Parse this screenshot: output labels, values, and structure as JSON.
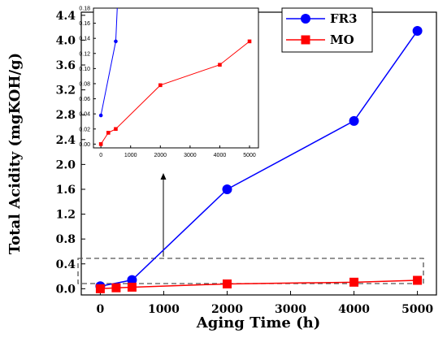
{
  "chart_data": [
    {
      "type": "line",
      "xlabel": "Aging Time (h)",
      "ylabel": "Total Acidity (mgKOH/g)",
      "xlim": [
        -300,
        5300
      ],
      "ylim": [
        -0.1,
        4.45
      ],
      "x_ticks": [
        0,
        1000,
        2000,
        3000,
        4000,
        5000
      ],
      "y_ticks": [
        0.0,
        0.4,
        0.8,
        1.2,
        1.6,
        2.0,
        2.4,
        2.8,
        3.2,
        3.6,
        4.0,
        4.4
      ],
      "x_tick_labels": [
        "0",
        "1000",
        "2000",
        "3000",
        "4000",
        "5000"
      ],
      "y_tick_labels": [
        "0.0",
        "0.4",
        "0.8",
        "1.2",
        "1.6",
        "2.0",
        "2.4",
        "2.8",
        "3.2",
        "3.6",
        "4.0",
        "4.4"
      ],
      "legend_position": "top-right",
      "series": [
        {
          "name": "FR3",
          "color": "#0000ff",
          "marker": "circle",
          "x": [
            0,
            500,
            2000,
            4000,
            5000
          ],
          "y": [
            0.04,
            0.14,
            1.6,
            2.7,
            4.15
          ]
        },
        {
          "name": "MO",
          "color": "#ff0000",
          "marker": "square",
          "x": [
            0,
            250,
            500,
            2000,
            4000,
            5000
          ],
          "y": [
            0.0,
            0.015,
            0.025,
            0.077,
            0.105,
            0.135
          ]
        }
      ]
    },
    {
      "type": "line",
      "xlabel": "",
      "ylabel": "",
      "xlim": [
        -250,
        5300
      ],
      "ylim": [
        -0.005,
        0.18
      ],
      "x_ticks": [
        0,
        1000,
        2000,
        3000,
        4000,
        5000
      ],
      "y_ticks": [
        0.0,
        0.02,
        0.04,
        0.06,
        0.08,
        0.1,
        0.12,
        0.14,
        0.16,
        0.18
      ],
      "x_tick_labels": [
        "0",
        "1000",
        "2000",
        "3000",
        "4000",
        "5000"
      ],
      "y_tick_labels": [
        "0.00",
        "0.02",
        "0.04",
        "0.06",
        "0.08",
        "0.10",
        "0.12",
        "0.14",
        "0.16",
        "0.18"
      ],
      "series": [
        {
          "name": "FR3",
          "color": "#0000ff",
          "marker": "circle",
          "x": [
            0,
            500,
            550
          ],
          "y": [
            0.038,
            0.136,
            0.18
          ],
          "marker_count": 2
        },
        {
          "name": "MO",
          "color": "#ff0000",
          "marker": "square",
          "x": [
            0,
            250,
            500,
            2000,
            4000,
            5000
          ],
          "y": [
            0.0,
            0.015,
            0.02,
            0.078,
            0.105,
            0.136
          ]
        }
      ]
    }
  ]
}
